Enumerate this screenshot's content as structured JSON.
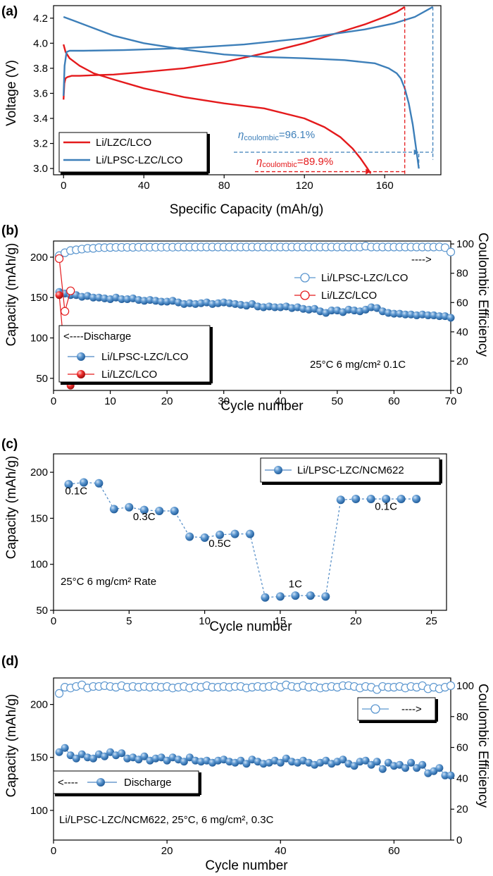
{
  "colors": {
    "red": "#e41a1c",
    "blue": "#3d7fb9",
    "blueDot": "#4d88c4",
    "axis": "#000000"
  },
  "chart_data": [
    {
      "panel": "(a)",
      "type": "line",
      "xlabel": "Specific Capacity (mAh/g)",
      "ylabel": "Voltage (V)",
      "xlim": [
        -5,
        188
      ],
      "ylim": [
        2.95,
        4.3
      ],
      "xticks": [
        0,
        40,
        80,
        120,
        160
      ],
      "yticks": [
        3.0,
        3.2,
        3.4,
        3.6,
        3.8,
        4.0,
        4.2
      ],
      "yticks_fmt": 1,
      "legend": [
        "Li/LZC/LCO",
        "Li/LPSC-LZC/LCO"
      ],
      "series": [
        {
          "name": "Li/LZC/LCO charge",
          "color": "red",
          "x": [
            0,
            0.4,
            1,
            2,
            4,
            8,
            15,
            25,
            40,
            60,
            80,
            100,
            120,
            140,
            150,
            160,
            166,
            170
          ],
          "y": [
            3.55,
            3.68,
            3.72,
            3.73,
            3.74,
            3.74,
            3.745,
            3.75,
            3.77,
            3.8,
            3.85,
            3.92,
            4.0,
            4.1,
            4.15,
            4.21,
            4.25,
            4.29
          ]
        },
        {
          "name": "Li/LZC/LCO discharge",
          "color": "red",
          "x": [
            0,
            1,
            3,
            8,
            15,
            25,
            40,
            60,
            80,
            100,
            120,
            130,
            138,
            144,
            148,
            151,
            153
          ],
          "y": [
            3.99,
            3.93,
            3.88,
            3.82,
            3.76,
            3.71,
            3.64,
            3.57,
            3.52,
            3.48,
            3.4,
            3.33,
            3.25,
            3.16,
            3.08,
            3.01,
            2.96
          ]
        },
        {
          "name": "Li/LPSC-LZC/LCO charge",
          "color": "blue",
          "x": [
            0,
            0.5,
            1.5,
            3,
            10,
            30,
            60,
            90,
            120,
            150,
            165,
            175,
            184
          ],
          "y": [
            3.58,
            3.82,
            3.93,
            3.94,
            3.94,
            3.945,
            3.96,
            3.99,
            4.04,
            4.11,
            4.16,
            4.21,
            4.29
          ]
        },
        {
          "name": "Li/LPSC-LZC/LCO discharge",
          "color": "blue",
          "x": [
            0,
            5,
            15,
            25,
            40,
            60,
            80,
            100,
            120,
            140,
            155,
            162,
            166,
            168,
            170,
            172,
            174,
            176,
            177
          ],
          "y": [
            4.21,
            4.18,
            4.12,
            4.06,
            4.0,
            3.95,
            3.91,
            3.89,
            3.88,
            3.865,
            3.84,
            3.8,
            3.76,
            3.72,
            3.64,
            3.52,
            3.35,
            3.12,
            3.0
          ]
        }
      ],
      "annotations": {
        "blue": {
          "prefix": "η",
          "sub": "coulombic",
          "value": "=96.1%"
        },
        "red": {
          "prefix": "η",
          "sub": "coulombic",
          "value": "=89.9%"
        }
      }
    },
    {
      "panel": "(b)",
      "type": "scatter",
      "xlabel": "Cycle number",
      "ylabel": "Capacity (mAh/g)",
      "y2label": "Coulombic Efficiency",
      "xlim": [
        0,
        70
      ],
      "ylim": [
        35,
        220
      ],
      "y2lim": [
        0,
        102
      ],
      "xticks": [
        0,
        10,
        20,
        30,
        40,
        50,
        60,
        70
      ],
      "yticks": [
        50,
        100,
        150,
        200
      ],
      "y2ticks": [
        0,
        20,
        40,
        60,
        80,
        100
      ],
      "legend_left": [
        "<----Discharge",
        "Li/LPSC-LZC/LCO",
        "Li/LZC/LCO"
      ],
      "legend_right": [
        "Li/LPSC-LZC/LCO",
        "Li/LZC/LCO"
      ],
      "arrow_right": "---->",
      "condition": "25°C 6 mg/cm² 0.1C",
      "blue_capacity": [
        157,
        155,
        153,
        153,
        151,
        152,
        150,
        150,
        149,
        148,
        150,
        148,
        148,
        149,
        147,
        146,
        147,
        146,
        145,
        145,
        146,
        144,
        142,
        143,
        142,
        143,
        144,
        142,
        143,
        144,
        143,
        142,
        141,
        140,
        142,
        139,
        138,
        139,
        138,
        138,
        139,
        137,
        138,
        136,
        135,
        136,
        133,
        131,
        134,
        134,
        132,
        135,
        134,
        133,
        135,
        138,
        137,
        133,
        131,
        130,
        130,
        129,
        129,
        128,
        129,
        128,
        128,
        127,
        127,
        125
      ],
      "blue_ce": [
        92,
        94,
        95.5,
        96,
        96.5,
        97,
        97,
        97.5,
        97.5,
        97.6,
        97.7,
        97.7,
        97.7,
        97.7,
        97.8,
        97.8,
        97.8,
        97.8,
        97.8,
        97.8,
        97.8,
        97.9,
        97.9,
        97.9,
        97.9,
        97.9,
        97.9,
        97.9,
        97.9,
        97.9,
        97.9,
        97.9,
        97.9,
        97.9,
        97.9,
        97.9,
        97.9,
        97.9,
        97.9,
        97.9,
        97.9,
        97.9,
        97.9,
        97.9,
        97.9,
        97.9,
        97.9,
        97.9,
        97.9,
        97.9,
        97.9,
        97.9,
        97.9,
        97.9,
        98.5,
        97.9,
        97.9,
        97.9,
        97.9,
        97.9,
        97.9,
        97.9,
        97.9,
        97.9,
        97.9,
        97.9,
        97.9,
        98,
        97.5,
        94.5
      ],
      "red_capacity": [
        153,
        77,
        41
      ],
      "red_ce": [
        90,
        54,
        68
      ]
    },
    {
      "panel": "(c)",
      "type": "scatter",
      "xlabel": "Cycle number",
      "ylabel": "Capacity (mAh/g)",
      "xlim": [
        0,
        26
      ],
      "ylim": [
        50,
        220
      ],
      "xticks": [
        0,
        5,
        10,
        15,
        20,
        25
      ],
      "yticks": [
        50,
        100,
        150,
        200
      ],
      "legend": [
        "Li/LPSC-LZC/NCM622"
      ],
      "condition": "25°C 6 mg/cm² Rate",
      "rate_labels": [
        {
          "text": "0.1C",
          "x": 1.5,
          "y": 176
        },
        {
          "text": "0.3C",
          "x": 6.0,
          "y": 148
        },
        {
          "text": "0.5C",
          "x": 11.0,
          "y": 119
        },
        {
          "text": "1C",
          "x": 16.0,
          "y": 75
        },
        {
          "text": "0.1C",
          "x": 22.0,
          "y": 159
        }
      ],
      "capacity": [
        187,
        189,
        188,
        160,
        162,
        159,
        158,
        158,
        130,
        129,
        132,
        133,
        133,
        64,
        65,
        66,
        66,
        65,
        170,
        171,
        171,
        171,
        171,
        171
      ]
    },
    {
      "panel": "(d)",
      "type": "scatter",
      "xlabel": "Cycle number",
      "ylabel": "Capacity (mAh/g)",
      "y2label": "Coulombic Efficiency",
      "xlim": [
        0,
        70
      ],
      "ylim": [
        72,
        225
      ],
      "y2lim": [
        0,
        105
      ],
      "xticks": [
        0,
        20,
        40,
        60
      ],
      "yticks": [
        100,
        150,
        200
      ],
      "y2ticks": [
        0,
        20,
        40,
        60,
        80,
        100
      ],
      "legend_top": [
        "---->"
      ],
      "legend_bottom": [
        "<----",
        "Discharge"
      ],
      "condition": "Li/LPSC-LZC/NCM622, 25°C, 6 mg/cm², 0.3C",
      "capacity": [
        155,
        159,
        152,
        149,
        153,
        150,
        149,
        153,
        151,
        155,
        152,
        154,
        149,
        150,
        148,
        151,
        147,
        149,
        150,
        147,
        150,
        148,
        146,
        150,
        147,
        146,
        147,
        145,
        147,
        148,
        146,
        145,
        147,
        144,
        148,
        146,
        144,
        145,
        147,
        145,
        149,
        146,
        145,
        147,
        145,
        143,
        145,
        147,
        144,
        146,
        148,
        144,
        142,
        146,
        147,
        143,
        146,
        139,
        145,
        142,
        143,
        140,
        145,
        140,
        143,
        135,
        137,
        140,
        133,
        133
      ],
      "ce": [
        95,
        99,
        98.5,
        99.5,
        100.5,
        98.5,
        99.5,
        99.5,
        100,
        99.5,
        99,
        100,
        99,
        99.5,
        99,
        99.5,
        99,
        99.5,
        99,
        99.5,
        98.5,
        99,
        99.5,
        98.5,
        99.5,
        99,
        100,
        99,
        99,
        99.5,
        99,
        99.5,
        99.5,
        98.5,
        99,
        99.5,
        99,
        99.5,
        100,
        99,
        100.5,
        99.5,
        99,
        100,
        99,
        99.5,
        98.5,
        99,
        99.5,
        99,
        100,
        100,
        99.5,
        98.5,
        99.5,
        99,
        97.5,
        99.5,
        99,
        99,
        99.5,
        98.5,
        99.5,
        99,
        100,
        98,
        99,
        98,
        99,
        100
      ]
    }
  ]
}
